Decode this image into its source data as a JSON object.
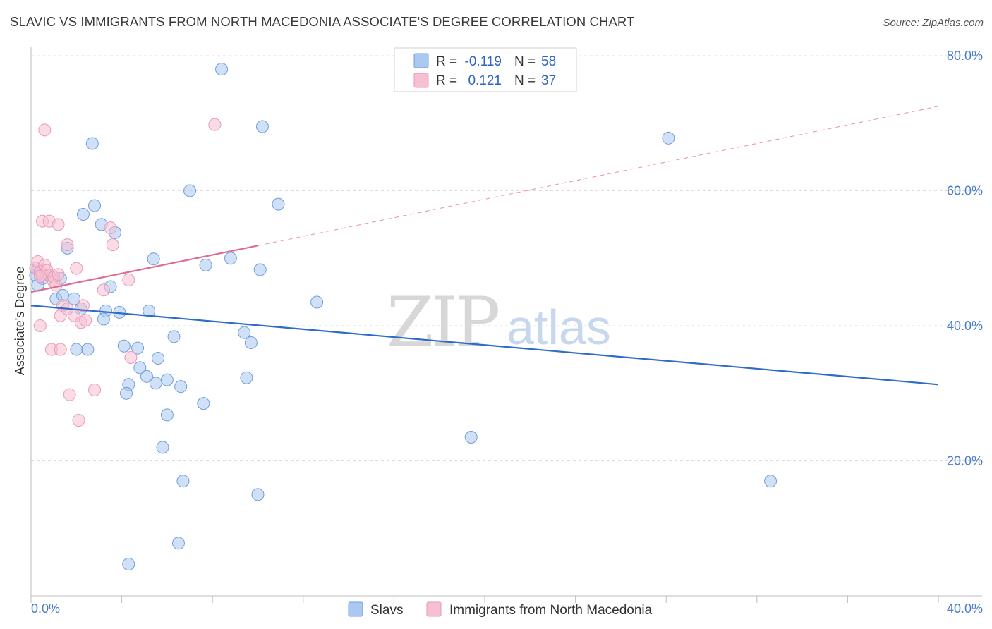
{
  "header": {
    "title": "SLAVIC VS IMMIGRANTS FROM NORTH MACEDONIA ASSOCIATE'S DEGREE CORRELATION CHART",
    "source": "Source: ZipAtlas.com"
  },
  "watermark": {
    "part1": "ZIP",
    "part2": "atlas"
  },
  "colors": {
    "slavs_fill": "#aac8f0",
    "slavs_stroke": "#6f9edc",
    "slavs_line": "#2d6cc8",
    "mac_fill": "#f7c0d2",
    "mac_stroke": "#e79ab4",
    "mac_line": "#e06a93",
    "grid": "#dcdcdc",
    "tick_text": "#4a7cc9"
  },
  "chart_data": {
    "type": "scatter",
    "title": "SLAVIC VS IMMIGRANTS FROM NORTH MACEDONIA ASSOCIATE'S DEGREE CORRELATION CHART",
    "xlabel": "",
    "ylabel": "Associate's Degree",
    "xlim": [
      0,
      40
    ],
    "ylim": [
      0,
      80
    ],
    "x_tick_labels": [
      "0.0%",
      "40.0%"
    ],
    "y_ticks": [
      20,
      40,
      60,
      80
    ],
    "y_tick_labels": [
      "20.0%",
      "40.0%",
      "60.0%",
      "80.0%"
    ],
    "legend": {
      "rows": [
        {
          "r_label": "R =",
          "r_value": "-0.119",
          "n_label": "N =",
          "n_value": "58"
        },
        {
          "r_label": "R =",
          "r_value": "0.121",
          "n_label": "N =",
          "n_value": "37"
        }
      ]
    },
    "series": [
      {
        "name": "Slavs",
        "trend": {
          "x0": 0,
          "y0": 43.0,
          "x1": 40,
          "y1": 31.3,
          "solid_to": 40
        },
        "points": [
          [
            0.2,
            47.5
          ],
          [
            0.3,
            48.3
          ],
          [
            0.4,
            48.0
          ],
          [
            0.5,
            47.0
          ],
          [
            0.7,
            47.5
          ],
          [
            1.0,
            47.2
          ],
          [
            1.3,
            47.0
          ],
          [
            1.1,
            44.0
          ],
          [
            1.4,
            44.5
          ],
          [
            1.9,
            44.0
          ],
          [
            2.2,
            42.5
          ],
          [
            1.6,
            51.5
          ],
          [
            2.3,
            56.5
          ],
          [
            2.8,
            57.8
          ],
          [
            2.7,
            67.0
          ],
          [
            3.1,
            55.0
          ],
          [
            3.7,
            53.8
          ],
          [
            3.5,
            45.8
          ],
          [
            3.3,
            42.2
          ],
          [
            3.9,
            42.0
          ],
          [
            3.2,
            41.0
          ],
          [
            2.0,
            36.5
          ],
          [
            2.5,
            36.5
          ],
          [
            4.1,
            37.0
          ],
          [
            4.7,
            36.7
          ],
          [
            4.3,
            31.3
          ],
          [
            4.8,
            33.8
          ],
          [
            5.1,
            32.5
          ],
          [
            5.5,
            31.5
          ],
          [
            5.2,
            42.2
          ],
          [
            5.4,
            49.9
          ],
          [
            5.6,
            35.2
          ],
          [
            4.2,
            30.0
          ],
          [
            6.0,
            32.0
          ],
          [
            6.3,
            38.4
          ],
          [
            6.6,
            31.0
          ],
          [
            6.0,
            26.8
          ],
          [
            5.8,
            22.0
          ],
          [
            6.7,
            17.0
          ],
          [
            6.5,
            7.8
          ],
          [
            4.3,
            4.7
          ],
          [
            7.0,
            60.0
          ],
          [
            7.6,
            28.5
          ],
          [
            7.7,
            49.0
          ],
          [
            8.4,
            78.0
          ],
          [
            8.8,
            50.0
          ],
          [
            9.4,
            39.0
          ],
          [
            9.7,
            37.5
          ],
          [
            9.5,
            32.3
          ],
          [
            10.1,
            48.3
          ],
          [
            10.2,
            69.5
          ],
          [
            10.0,
            15.0
          ],
          [
            10.9,
            58.0
          ],
          [
            12.6,
            43.5
          ],
          [
            19.4,
            23.5
          ],
          [
            28.1,
            67.8
          ],
          [
            32.6,
            17.0
          ],
          [
            0.3,
            46.0
          ]
        ]
      },
      {
        "name": "Immigrants from North Macedonia",
        "trend": {
          "x0": 0,
          "y0": 45.0,
          "x1": 40,
          "y1": 72.5,
          "solid_to": 10
        },
        "points": [
          [
            0.2,
            48.5
          ],
          [
            0.3,
            49.5
          ],
          [
            0.4,
            48.0
          ],
          [
            0.5,
            47.5
          ],
          [
            0.6,
            49.0
          ],
          [
            0.7,
            48.2
          ],
          [
            0.8,
            47.5
          ],
          [
            1.0,
            46.5
          ],
          [
            1.1,
            46.0
          ],
          [
            0.5,
            55.5
          ],
          [
            0.8,
            55.5
          ],
          [
            1.2,
            55.0
          ],
          [
            0.6,
            69.0
          ],
          [
            1.6,
            52.0
          ],
          [
            2.0,
            48.5
          ],
          [
            1.4,
            43.0
          ],
          [
            1.9,
            41.5
          ],
          [
            1.3,
            41.5
          ],
          [
            1.6,
            42.5
          ],
          [
            2.2,
            40.5
          ],
          [
            2.4,
            40.8
          ],
          [
            0.4,
            40.0
          ],
          [
            0.9,
            36.5
          ],
          [
            1.3,
            36.5
          ],
          [
            3.2,
            45.3
          ],
          [
            3.5,
            54.5
          ],
          [
            3.6,
            52.0
          ],
          [
            4.3,
            46.8
          ],
          [
            4.4,
            35.3
          ],
          [
            2.8,
            30.5
          ],
          [
            1.7,
            29.8
          ],
          [
            2.1,
            26.0
          ],
          [
            8.1,
            69.8
          ],
          [
            1.0,
            47.2
          ],
          [
            1.2,
            47.6
          ],
          [
            2.3,
            43.0
          ],
          [
            0.4,
            47.3
          ]
        ]
      }
    ]
  },
  "bottom_legend": [
    "Slavs",
    "Immigrants from North Macedonia"
  ]
}
